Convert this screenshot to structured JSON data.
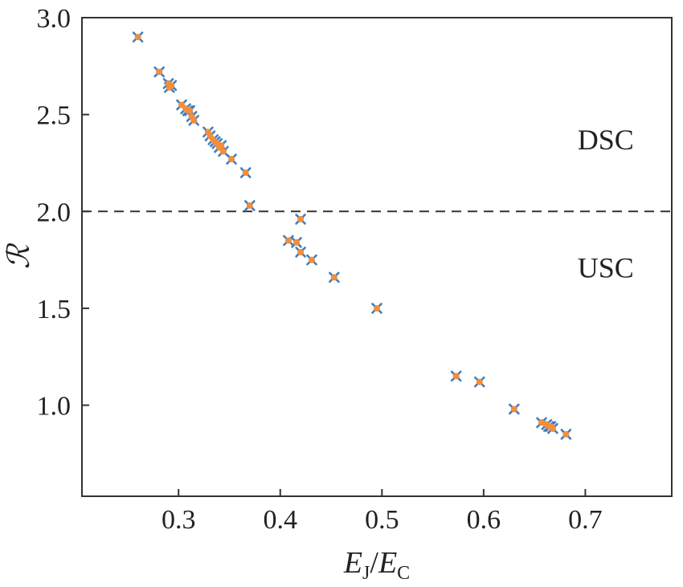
{
  "chart_data": {
    "type": "scatter",
    "xlabel": "E_J / E_C",
    "xlabel_parts": {
      "base1": "E",
      "sub1": "J",
      "sep": "/",
      "base2": "E",
      "sub2": "C"
    },
    "ylabel": "ℛ",
    "xlim": [
      0.205,
      0.785
    ],
    "ylim": [
      0.53,
      3.0
    ],
    "xticks": [
      0.3,
      0.4,
      0.5,
      0.6,
      0.7
    ],
    "xtick_labels": [
      "0.3",
      "0.4",
      "0.5",
      "0.6",
      "0.7"
    ],
    "yticks": [
      1.0,
      1.5,
      2.0,
      2.5,
      3.0
    ],
    "ytick_labels": [
      "1.0",
      "1.5",
      "2.0",
      "2.5",
      "3.0"
    ],
    "threshold": {
      "y": 2.0,
      "style": "dashed"
    },
    "annotations": [
      {
        "text": "DSC",
        "x": 0.72,
        "y": 2.37
      },
      {
        "text": "USC",
        "x": 0.72,
        "y": 1.71
      }
    ],
    "grid": false,
    "series": [
      {
        "marker": "x",
        "color": "#3f7fbf",
        "points": [
          [
            0.26,
            2.9
          ],
          [
            0.281,
            2.72
          ],
          [
            0.29,
            2.66
          ],
          [
            0.291,
            2.64
          ],
          [
            0.293,
            2.65
          ],
          [
            0.303,
            2.55
          ],
          [
            0.307,
            2.53
          ],
          [
            0.309,
            2.52
          ],
          [
            0.311,
            2.52
          ],
          [
            0.313,
            2.49
          ],
          [
            0.315,
            2.47
          ],
          [
            0.329,
            2.41
          ],
          [
            0.331,
            2.39
          ],
          [
            0.334,
            2.37
          ],
          [
            0.336,
            2.36
          ],
          [
            0.338,
            2.35
          ],
          [
            0.34,
            2.33
          ],
          [
            0.342,
            2.34
          ],
          [
            0.344,
            2.31
          ],
          [
            0.352,
            2.27
          ],
          [
            0.366,
            2.2
          ],
          [
            0.37,
            2.03
          ],
          [
            0.408,
            1.85
          ],
          [
            0.416,
            1.84
          ],
          [
            0.42,
            1.96
          ],
          [
            0.42,
            1.79
          ],
          [
            0.431,
            1.75
          ],
          [
            0.453,
            1.66
          ],
          [
            0.495,
            1.5
          ],
          [
            0.573,
            1.15
          ],
          [
            0.596,
            1.12
          ],
          [
            0.63,
            0.98
          ],
          [
            0.657,
            0.91
          ],
          [
            0.662,
            0.9
          ],
          [
            0.664,
            0.89
          ],
          [
            0.666,
            0.89
          ],
          [
            0.668,
            0.88
          ],
          [
            0.681,
            0.85
          ]
        ]
      },
      {
        "marker": "dot",
        "color": "#f28e3c",
        "points": [
          [
            0.26,
            2.9
          ],
          [
            0.281,
            2.72
          ],
          [
            0.29,
            2.66
          ],
          [
            0.291,
            2.64
          ],
          [
            0.293,
            2.65
          ],
          [
            0.303,
            2.55
          ],
          [
            0.307,
            2.53
          ],
          [
            0.309,
            2.52
          ],
          [
            0.311,
            2.52
          ],
          [
            0.313,
            2.49
          ],
          [
            0.315,
            2.47
          ],
          [
            0.329,
            2.41
          ],
          [
            0.331,
            2.39
          ],
          [
            0.334,
            2.37
          ],
          [
            0.336,
            2.36
          ],
          [
            0.338,
            2.35
          ],
          [
            0.34,
            2.33
          ],
          [
            0.342,
            2.34
          ],
          [
            0.344,
            2.31
          ],
          [
            0.352,
            2.27
          ],
          [
            0.366,
            2.2
          ],
          [
            0.37,
            2.03
          ],
          [
            0.408,
            1.85
          ],
          [
            0.416,
            1.84
          ],
          [
            0.42,
            1.96
          ],
          [
            0.42,
            1.79
          ],
          [
            0.431,
            1.75
          ],
          [
            0.453,
            1.66
          ],
          [
            0.495,
            1.5
          ],
          [
            0.573,
            1.15
          ],
          [
            0.596,
            1.12
          ],
          [
            0.63,
            0.98
          ],
          [
            0.657,
            0.91
          ],
          [
            0.662,
            0.9
          ],
          [
            0.664,
            0.89
          ],
          [
            0.666,
            0.89
          ],
          [
            0.668,
            0.88
          ],
          [
            0.681,
            0.85
          ]
        ]
      }
    ]
  }
}
